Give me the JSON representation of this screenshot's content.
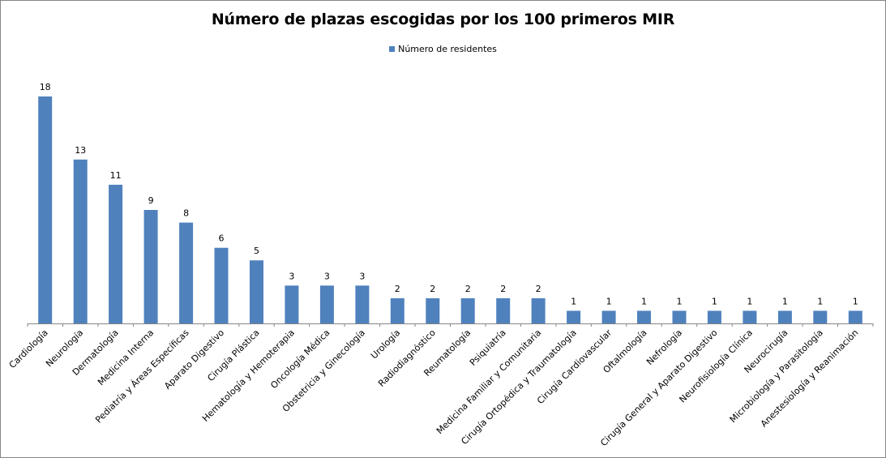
{
  "chart_data": {
    "type": "bar",
    "title": "Número de plazas escogidas por los 100 primeros MIR",
    "xlabel": "",
    "ylabel": "",
    "ylim": [
      0,
      18
    ],
    "grid": false,
    "legend_position": "top-center",
    "bar_color": "#4f81bd",
    "categories": [
      "Cardiología",
      "Neurología",
      "Dermatología",
      "Medicina Interna",
      "Pediatría y Áreas Específicas",
      "Aparato Digestivo",
      "Cirugía Plástica",
      "Hematología y Hemoterapia",
      "Oncología Médica",
      "Obstetricia y Ginecología",
      "Urología",
      "Radiodiagnóstico",
      "Reumatología",
      "Psiquiatría",
      "Medicina Familiar y Comunitaria",
      "Cirugía Ortopédica y Traumatología",
      "Cirugía Cardiovascular",
      "Oftalmología",
      "Nefrología",
      "Cirugía General y Aparato Digestivo",
      "Neurofisiología Clínica",
      "Neurocirugía",
      "Microbiología y Parasitología",
      "Anestesiología y Reanimación"
    ],
    "series": [
      {
        "name": "Número de residentes",
        "values": [
          18,
          13,
          11,
          9,
          8,
          6,
          5,
          3,
          3,
          3,
          2,
          2,
          2,
          2,
          2,
          1,
          1,
          1,
          1,
          1,
          1,
          1,
          1,
          1
        ]
      }
    ]
  }
}
